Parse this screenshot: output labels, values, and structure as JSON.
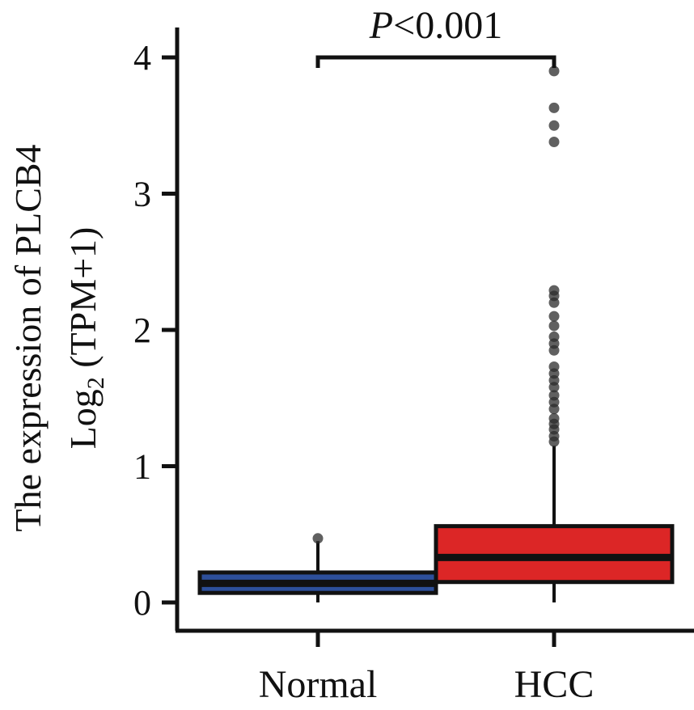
{
  "chart_data": {
    "type": "box",
    "title": "",
    "ylabel_line1": "The expression of PLCB4",
    "ylabel_line2_prefix": "Log",
    "ylabel_line2_sub": "2",
    "ylabel_line2_suffix": " (TPM+1)",
    "xlabel": "",
    "ylim": [
      0,
      4.2
    ],
    "yticks": [
      0,
      1,
      2,
      3,
      4
    ],
    "ytick_labels": [
      "0",
      "1",
      "2",
      "3",
      "4"
    ],
    "significance": {
      "label_italic": "P",
      "label_rest": "<0.001",
      "bracket_y": 4.0,
      "from": "Normal",
      "to": "HCC"
    },
    "groups": [
      {
        "name": "Normal",
        "color": "#2d4f9b",
        "whisker_low": 0.0,
        "q1": 0.07,
        "median": 0.14,
        "q3": 0.22,
        "whisker_high": 0.45,
        "outliers": [
          0.47
        ]
      },
      {
        "name": "HCC",
        "color": "#dc2626",
        "whisker_low": 0.0,
        "q1": 0.15,
        "median": 0.33,
        "q3": 0.56,
        "whisker_high": 1.15,
        "outliers": [
          1.18,
          1.22,
          1.27,
          1.31,
          1.35,
          1.42,
          1.47,
          1.52,
          1.58,
          1.63,
          1.68,
          1.73,
          1.85,
          1.9,
          1.95,
          2.03,
          2.1,
          2.2,
          2.25,
          2.29,
          3.38,
          3.5,
          3.63,
          3.9
        ]
      }
    ]
  }
}
